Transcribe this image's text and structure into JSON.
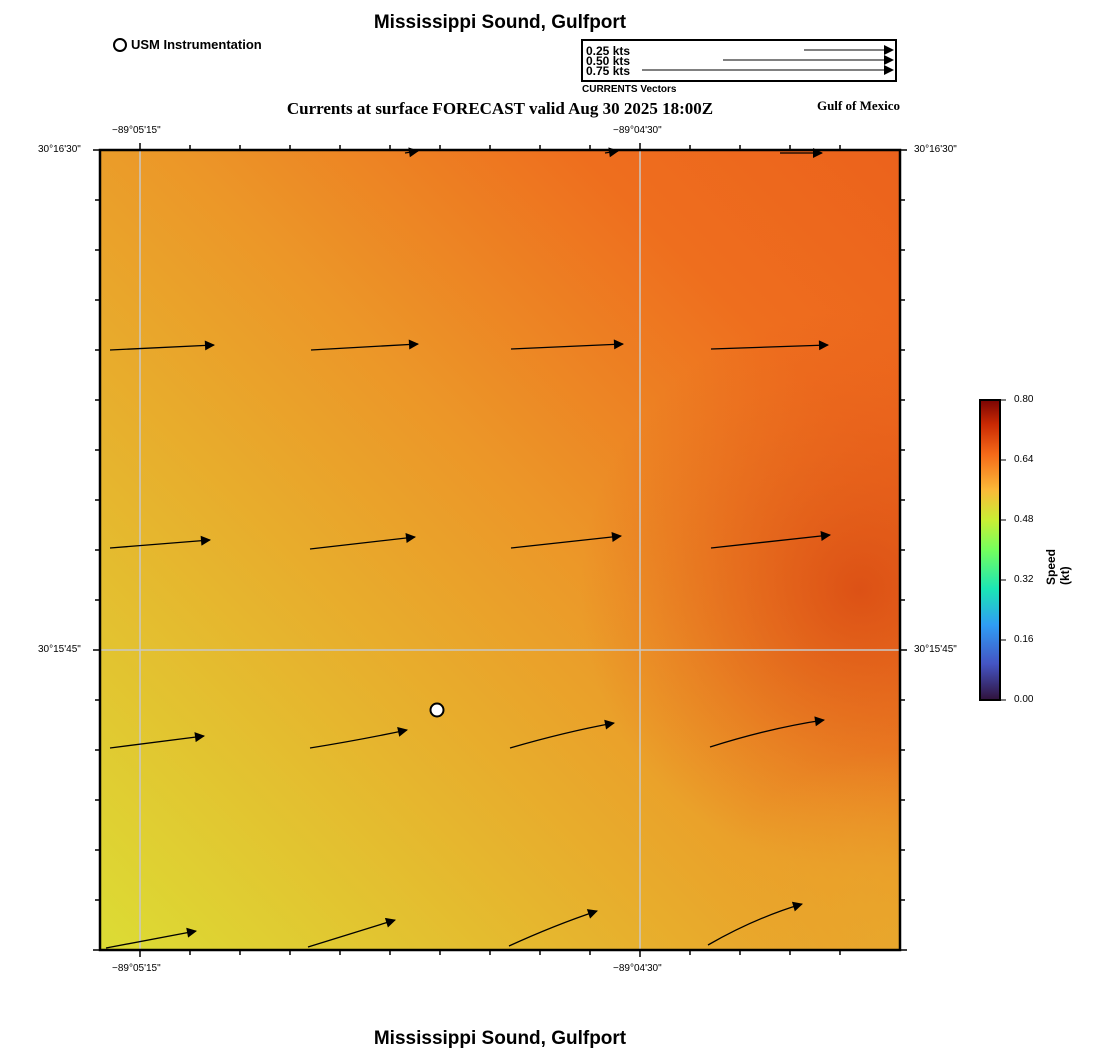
{
  "title": "Mississippi Sound, Gulfport",
  "footer_title": "Mississippi Sound, Gulfport",
  "subtitle": "Currents at surface FORECAST valid Aug 30 2025 18:00Z",
  "region_label": "Gulf of Mexico",
  "station_legend": {
    "label": "USM Instrumentation"
  },
  "vector_legend": {
    "caption": "CURRENTS Vectors",
    "entries": [
      {
        "label": "0.25 kts",
        "speed": 0.25
      },
      {
        "label": "0.50 kts",
        "speed": 0.5
      },
      {
        "label": "0.75 kts",
        "speed": 0.75
      }
    ]
  },
  "map": {
    "lon_ticks": [
      "−89°05'15\"",
      "−89°04'30\""
    ],
    "lat_ticks": [
      "30°16'30\"",
      "30°15'45\""
    ],
    "station": {
      "name": "USM Instrumentation"
    }
  },
  "colorbar": {
    "title": "Speed (kt)",
    "ticks": [
      "0.80",
      "0.64",
      "0.48",
      "0.32",
      "0.16",
      "0.00"
    ],
    "range": [
      0.0,
      0.8
    ]
  },
  "colors": {
    "field_low": "#dcdc34",
    "field_mid": "#eea22a",
    "field_high": "#e4561a"
  }
}
